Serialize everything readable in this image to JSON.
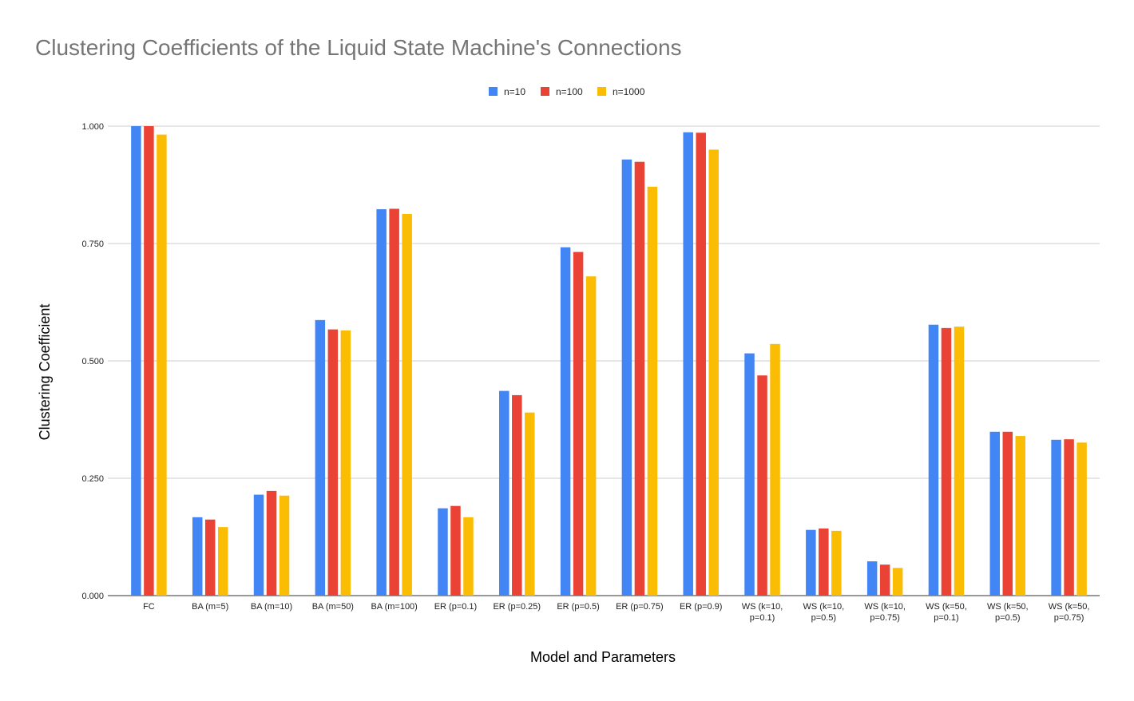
{
  "chart_data": {
    "type": "bar",
    "title": "Clustering Coefficients of the Liquid State Machine's Connections",
    "xlabel": "Model and Parameters",
    "ylabel": "Clustering Coefficient",
    "ylim": [
      0,
      1
    ],
    "yticks": [
      "0.000",
      "0.250",
      "0.500",
      "0.750",
      "1.000"
    ],
    "ytick_values": [
      0,
      0.25,
      0.5,
      0.75,
      1.0
    ],
    "grid": true,
    "legend_position": "top",
    "categories": [
      [
        "FC"
      ],
      [
        "BA (m=5)"
      ],
      [
        "BA (m=10)"
      ],
      [
        "BA (m=50)"
      ],
      [
        "BA (m=100)"
      ],
      [
        "ER (p=0.1)"
      ],
      [
        "ER (p=0.25)"
      ],
      [
        "ER (p=0.5)"
      ],
      [
        "ER (p=0.75)"
      ],
      [
        "ER (p=0.9)"
      ],
      [
        "WS (k=10,",
        "p=0.1)"
      ],
      [
        "WS (k=10,",
        "p=0.5)"
      ],
      [
        "WS (k=10,",
        "p=0.75)"
      ],
      [
        "WS (k=50,",
        "p=0.1)"
      ],
      [
        "WS (k=50,",
        "p=0.5)"
      ],
      [
        "WS (k=50,",
        "p=0.75)"
      ]
    ],
    "series": [
      {
        "name": "n=10",
        "color": "#4285F4",
        "values": [
          1.0,
          0.167,
          0.215,
          0.587,
          0.823,
          0.186,
          0.436,
          0.742,
          0.929,
          0.987,
          0.516,
          0.14,
          0.073,
          0.577,
          0.349,
          0.332
        ]
      },
      {
        "name": "n=100",
        "color": "#EA4335",
        "values": [
          1.0,
          0.162,
          0.223,
          0.567,
          0.824,
          0.191,
          0.427,
          0.732,
          0.924,
          0.986,
          0.469,
          0.143,
          0.066,
          0.57,
          0.349,
          0.333
        ]
      },
      {
        "name": "n=1000",
        "color": "#FBBC04",
        "values": [
          0.982,
          0.146,
          0.213,
          0.565,
          0.813,
          0.167,
          0.39,
          0.68,
          0.871,
          0.95,
          0.536,
          0.138,
          0.059,
          0.573,
          0.34,
          0.326
        ]
      }
    ]
  }
}
